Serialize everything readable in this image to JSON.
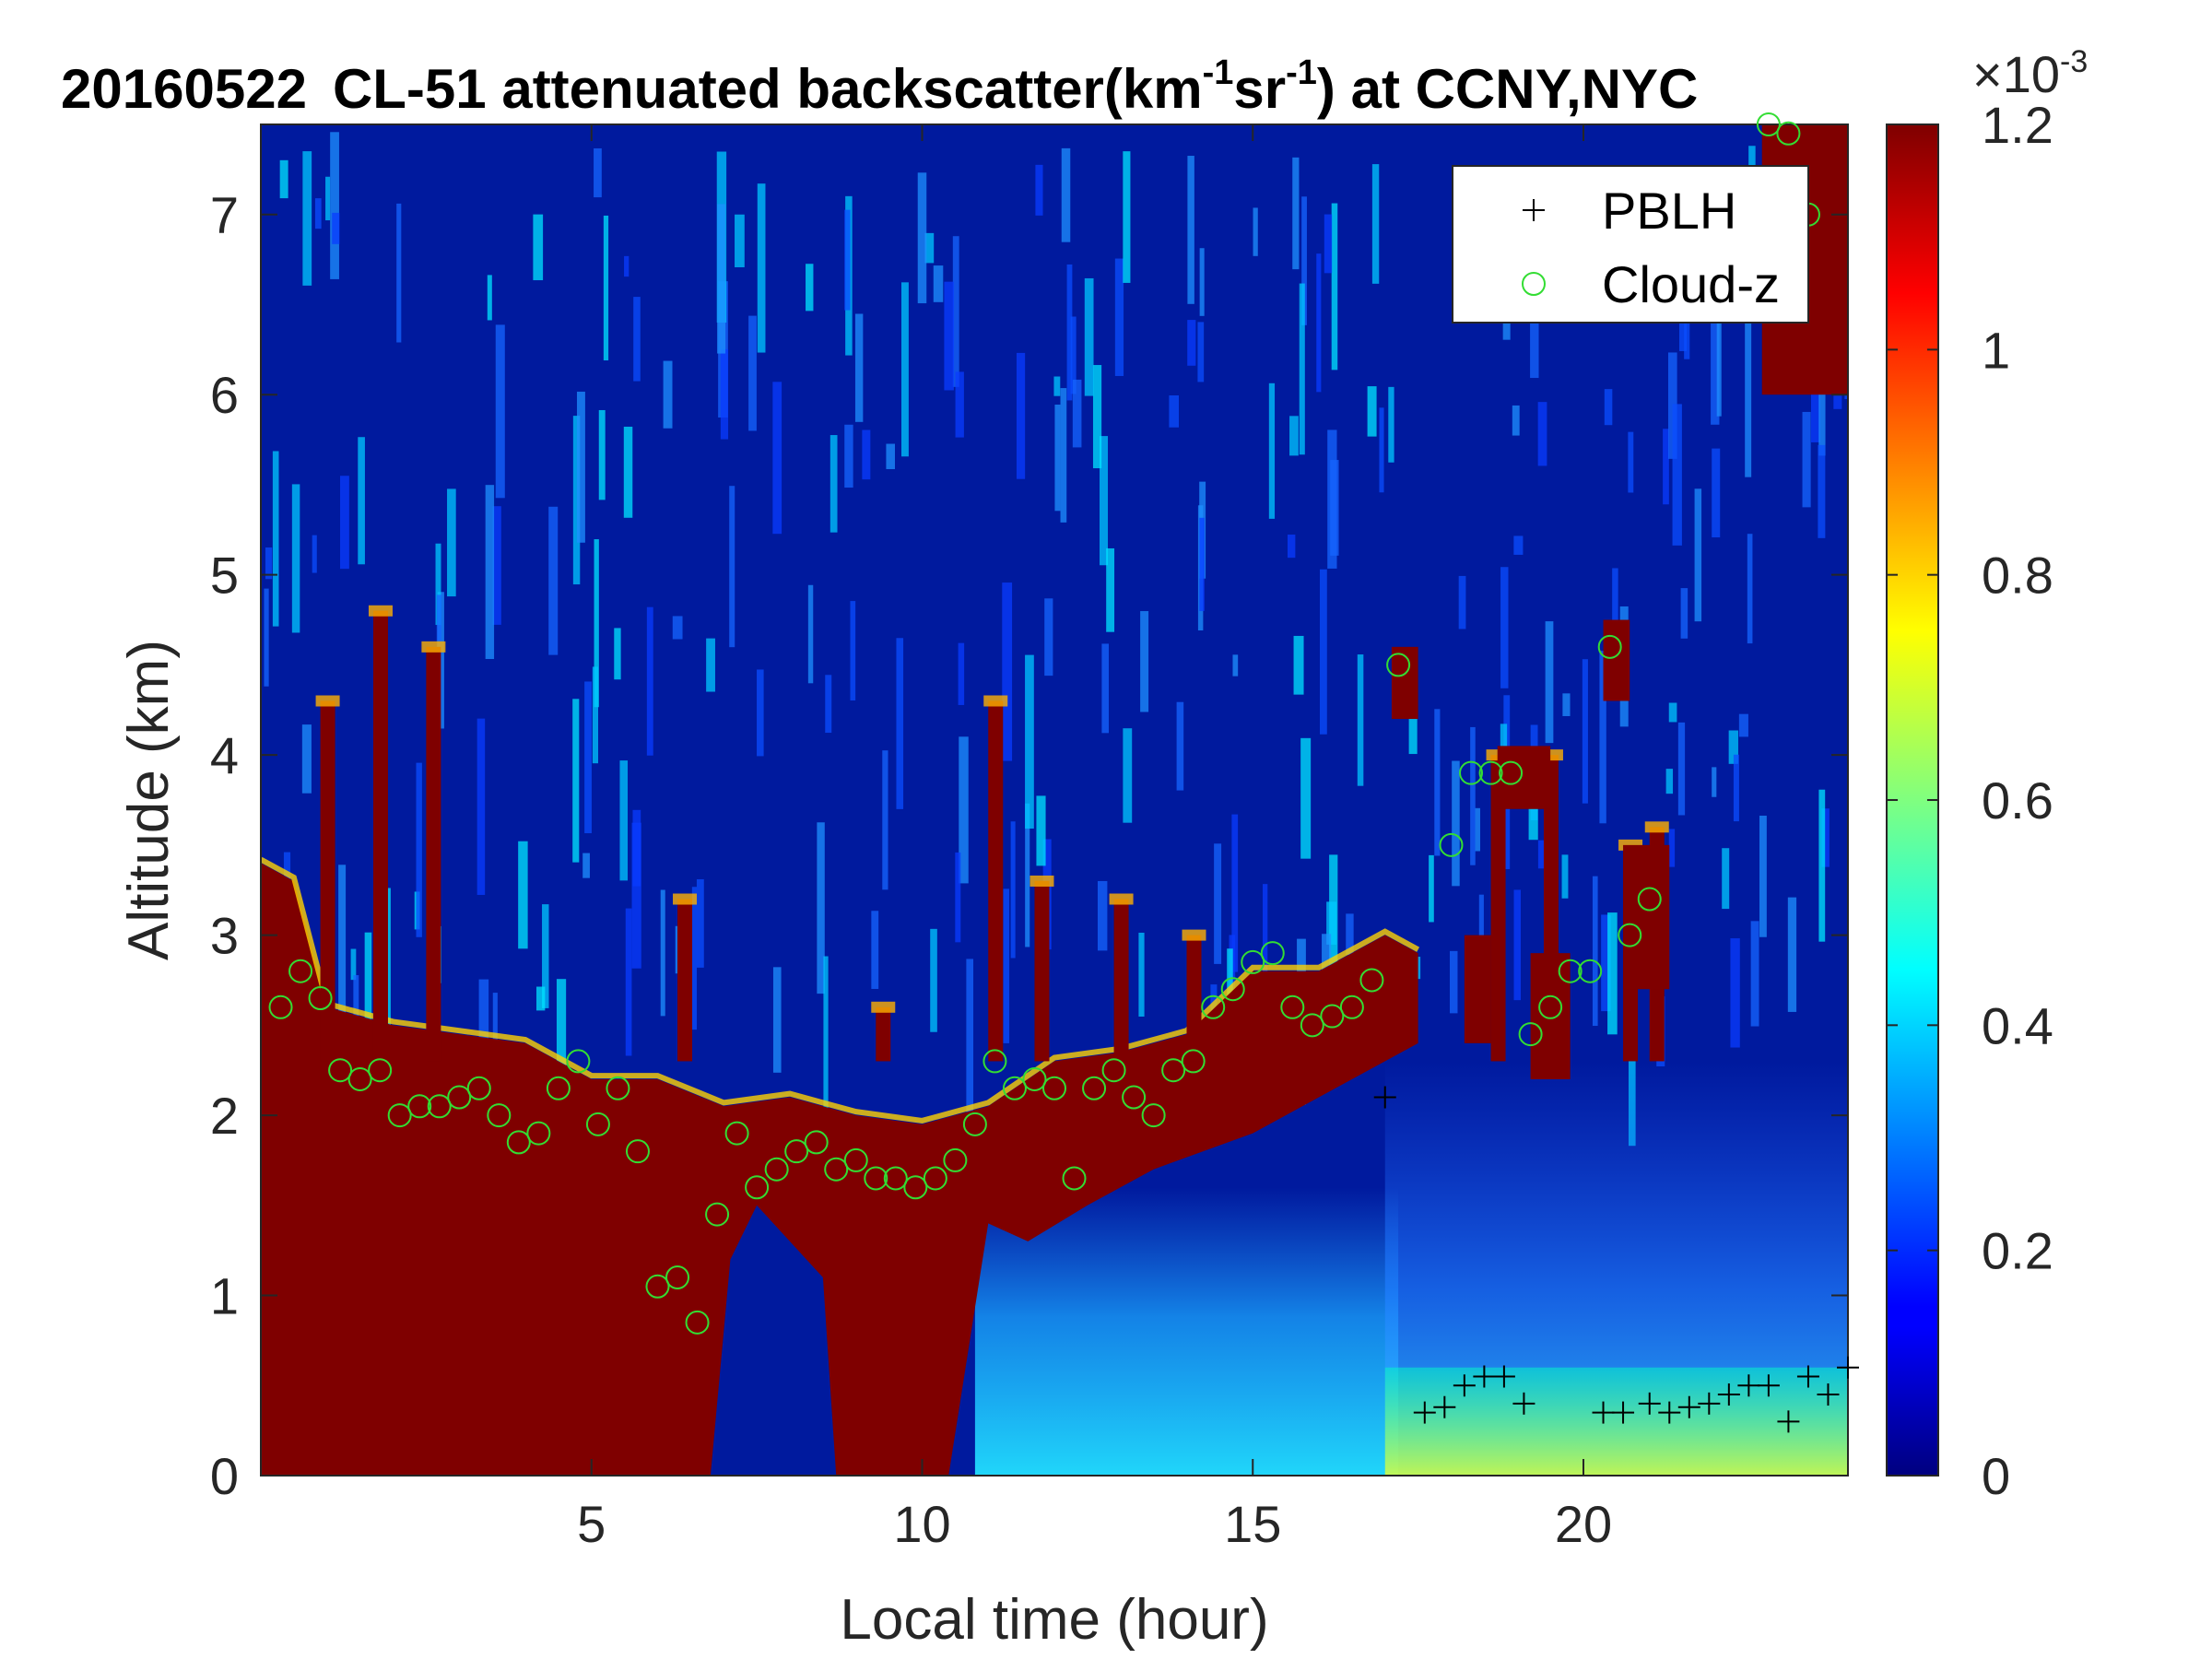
{
  "chart_data": {
    "type": "heatmap",
    "title": {
      "date": "20160522",
      "instrument": "CL-51 attenuated backscatter(km",
      "sup1": "-1",
      "mid": "sr",
      "sup2": "-1",
      "tail": ") at CCNY,NYC"
    },
    "xlabel": "Local time (hour)",
    "ylabel": "Altitude (km)",
    "xlim": [
      0,
      24
    ],
    "ylim": [
      0,
      7.5
    ],
    "xticks": [
      5,
      10,
      15,
      20
    ],
    "yticks": [
      0,
      1,
      2,
      3,
      4,
      5,
      6,
      7
    ],
    "colorbar": {
      "colormap": "jet",
      "clim": [
        0,
        1.2
      ],
      "ticks": [
        "0",
        "0.2",
        "0.4",
        "0.6",
        "0.8",
        "1",
        "1.2"
      ],
      "exponent_base": "×10",
      "exponent": "-3"
    },
    "legend": {
      "position": "top-right",
      "entries": [
        {
          "name": "PBLH",
          "marker": "+",
          "color": "#000000"
        },
        {
          "name": "Cloud-z",
          "marker": "o",
          "color": "#33dd33"
        }
      ]
    },
    "layer_top_km": [
      [
        0,
        3.4
      ],
      [
        0.5,
        3.3
      ],
      [
        1,
        2.6
      ],
      [
        2,
        2.5
      ],
      [
        3,
        2.45
      ],
      [
        4,
        2.4
      ],
      [
        5,
        2.2
      ],
      [
        6,
        2.2
      ],
      [
        7,
        2.05
      ],
      [
        8,
        2.1
      ],
      [
        9,
        2.0
      ],
      [
        10,
        1.95
      ],
      [
        11,
        2.05
      ],
      [
        12,
        2.3
      ],
      [
        13,
        2.35
      ],
      [
        14,
        2.45
      ],
      [
        15,
        2.8
      ],
      [
        16,
        2.8
      ],
      [
        17,
        3.0
      ],
      [
        17.5,
        2.9
      ]
    ],
    "series": [
      {
        "name": "Cloud-z",
        "x": [
          0.3,
          0.6,
          0.9,
          1.2,
          1.5,
          1.8,
          2.1,
          2.4,
          2.7,
          3.0,
          3.3,
          3.6,
          3.9,
          4.2,
          4.5,
          4.8,
          5.1,
          5.4,
          5.7,
          6.0,
          6.3,
          6.6,
          6.9,
          7.2,
          7.5,
          7.8,
          8.1,
          8.4,
          8.7,
          9.0,
          9.3,
          9.6,
          9.9,
          10.2,
          10.5,
          10.8,
          11.1,
          11.4,
          11.7,
          12.0,
          12.3,
          12.6,
          12.9,
          13.2,
          13.5,
          13.8,
          14.1,
          14.4,
          14.7,
          15.0,
          15.3,
          15.6,
          15.9,
          16.2,
          16.5,
          16.8,
          17.2,
          18.0,
          18.3,
          18.6,
          18.9,
          19.2,
          19.5,
          19.8,
          20.1,
          20.4,
          20.7,
          21.0,
          22.8,
          23.1,
          23.4
        ],
        "y": [
          2.6,
          2.8,
          2.65,
          2.25,
          2.2,
          2.25,
          2.0,
          2.05,
          2.05,
          2.1,
          2.15,
          2.0,
          1.85,
          1.9,
          2.15,
          2.3,
          1.95,
          2.15,
          1.8,
          1.05,
          1.1,
          0.85,
          1.45,
          1.9,
          1.6,
          1.7,
          1.8,
          1.85,
          1.7,
          1.75,
          1.65,
          1.65,
          1.6,
          1.65,
          1.75,
          1.95,
          2.3,
          2.15,
          2.2,
          2.15,
          1.65,
          2.15,
          2.25,
          2.1,
          2.0,
          2.25,
          2.3,
          2.6,
          2.7,
          2.85,
          2.9,
          2.6,
          2.5,
          2.55,
          2.6,
          2.75,
          4.5,
          3.5,
          3.9,
          3.9,
          3.9,
          2.45,
          2.6,
          2.8,
          2.8,
          4.6,
          3.0,
          3.2,
          7.5,
          7.45,
          7.0
        ]
      },
      {
        "name": "PBLH",
        "x": [
          17.0,
          17.6,
          17.9,
          18.2,
          18.5,
          18.8,
          19.1,
          20.3,
          20.6,
          21.0,
          21.3,
          21.6,
          21.9,
          22.2,
          22.5,
          22.8,
          23.1,
          23.4,
          23.7,
          24.0
        ],
        "y": [
          2.1,
          0.35,
          0.38,
          0.5,
          0.55,
          0.55,
          0.4,
          0.35,
          0.35,
          0.4,
          0.35,
          0.38,
          0.4,
          0.45,
          0.5,
          0.5,
          0.3,
          0.55,
          0.45,
          0.6
        ]
      }
    ]
  }
}
